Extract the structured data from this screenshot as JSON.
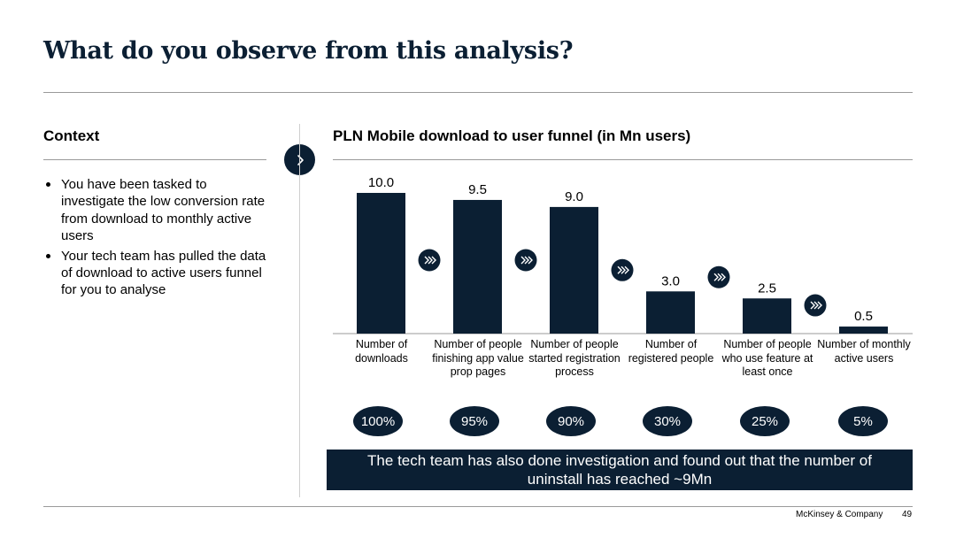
{
  "slide": {
    "title": "What do you observe from this analysis?",
    "brand": "McKinsey & Company",
    "page_number": "49",
    "accent_color": "#0b1f33"
  },
  "context": {
    "heading": "Context",
    "next_icon": "chevron-right-icon",
    "bullets": [
      "You have been tasked to investigate the low conversion rate from download to monthly active users",
      "Your tech team has pulled the data of download to active users funnel for you to analyse"
    ]
  },
  "chart_data": {
    "type": "bar",
    "title": "PLN Mobile download to user funnel (in Mn users)",
    "categories": [
      "Number of downloads",
      "Number of people finishing app value prop pages",
      "Number of people started registration process",
      "Number of registered people",
      "Number of people who use feature at least once",
      "Number of monthly active users"
    ],
    "values": [
      10.0,
      9.5,
      9.0,
      3.0,
      2.5,
      0.5
    ],
    "value_labels": [
      "10.0",
      "9.5",
      "9.0",
      "3.0",
      "2.5",
      "0.5"
    ],
    "percentages": [
      "100%",
      "95%",
      "90%",
      "30%",
      "25%",
      "5%"
    ],
    "ylim": [
      0,
      10
    ],
    "xlabel": "",
    "ylabel": "",
    "grid": false,
    "bar_color": "#0b1f33",
    "arrow_icon": "double-chevron-right-icon"
  },
  "callout": {
    "text": "The tech team has also done investigation and found out that the number of uninstall has reached ~9Mn"
  }
}
